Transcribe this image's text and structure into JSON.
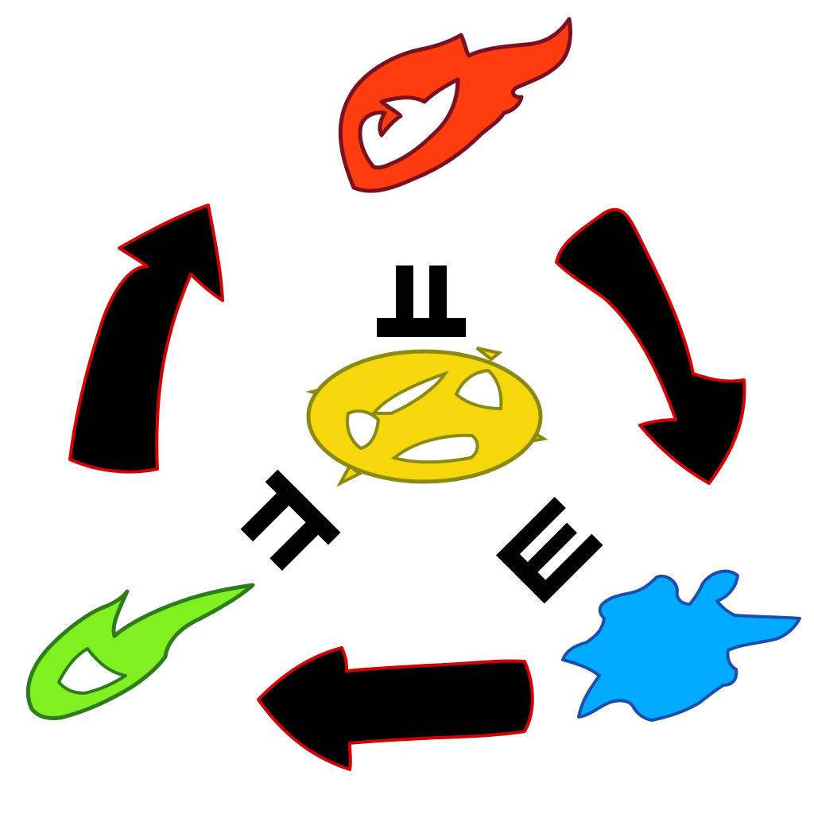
{
  "diagram": {
    "type": "elemental-cycle",
    "nodes": [
      {
        "id": "fire",
        "element": "fire",
        "icon": "flame-icon",
        "color": "#ff3b10",
        "outline": "#7a1020"
      },
      {
        "id": "water",
        "element": "water",
        "icon": "water-splash-icon",
        "color": "#00aaff",
        "outline": "#1a4fb0"
      },
      {
        "id": "wind",
        "element": "wind",
        "icon": "wind-swirl-icon",
        "color": "#80f020",
        "outline": "#2e7d1a"
      },
      {
        "id": "core",
        "element": "lightning",
        "icon": "spiked-ring-icon",
        "color": "#f5d80c",
        "outline": "#8a8a10"
      }
    ],
    "edges": [
      {
        "from": "fire",
        "to": "water",
        "style": "black-arrow"
      },
      {
        "from": "water",
        "to": "wind",
        "style": "black-arrow"
      },
      {
        "from": "wind",
        "to": "fire",
        "style": "black-arrow"
      }
    ],
    "glyph_symbols": [
      "glyph-top-icon",
      "glyph-right-icon",
      "glyph-left-icon"
    ],
    "colors": {
      "arrow_fill": "#000000",
      "arrow_outline": "#d40000",
      "glyph": "#000000",
      "background": "#ffffff"
    }
  }
}
